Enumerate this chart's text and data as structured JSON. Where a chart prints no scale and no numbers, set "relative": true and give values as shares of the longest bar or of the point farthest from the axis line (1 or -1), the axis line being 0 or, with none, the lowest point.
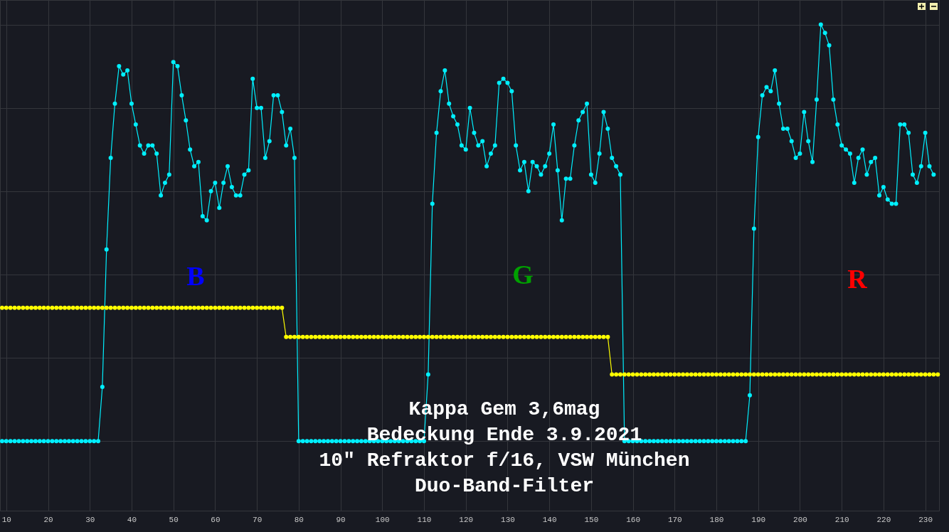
{
  "chart_data": {
    "type": "line",
    "x": [
      9,
      10,
      11,
      12,
      13,
      14,
      15,
      16,
      17,
      18,
      19,
      20,
      21,
      22,
      23,
      24,
      25,
      26,
      27,
      28,
      29,
      30,
      31,
      32,
      33,
      34,
      35,
      36,
      37,
      38,
      39,
      40,
      41,
      42,
      43,
      44,
      45,
      46,
      47,
      48,
      49,
      50,
      51,
      52,
      53,
      54,
      55,
      56,
      57,
      58,
      59,
      60,
      61,
      62,
      63,
      64,
      65,
      66,
      67,
      68,
      69,
      70,
      71,
      72,
      73,
      74,
      75,
      76,
      77,
      78,
      79,
      80,
      81,
      82,
      83,
      84,
      85,
      86,
      87,
      88,
      89,
      90,
      91,
      92,
      93,
      94,
      95,
      96,
      97,
      98,
      99,
      100,
      101,
      102,
      103,
      104,
      105,
      106,
      107,
      108,
      109,
      110,
      111,
      112,
      113,
      114,
      115,
      116,
      117,
      118,
      119,
      120,
      121,
      122,
      123,
      124,
      125,
      126,
      127,
      128,
      129,
      130,
      131,
      132,
      133,
      134,
      135,
      136,
      137,
      138,
      139,
      140,
      141,
      142,
      143,
      144,
      145,
      146,
      147,
      148,
      149,
      150,
      151,
      152,
      153,
      154,
      155,
      156,
      157,
      158,
      159,
      160,
      161,
      162,
      163,
      164,
      165,
      166,
      167,
      168,
      169,
      170,
      171,
      172,
      173,
      174,
      175,
      176,
      177,
      178,
      179,
      180,
      181,
      182,
      183,
      184,
      185,
      186,
      187,
      188,
      189,
      190,
      191,
      192,
      193,
      194,
      195,
      196,
      197,
      198,
      199,
      200,
      201,
      202,
      203,
      204,
      205,
      206,
      207,
      208,
      209,
      210,
      211,
      212,
      213,
      214,
      215,
      216,
      217,
      218,
      219,
      220,
      221,
      222,
      223,
      224,
      225,
      226,
      227,
      228,
      229,
      230,
      231,
      232,
      233
    ],
    "series": [
      {
        "color": "#00f0ff",
        "values": [
          0,
          0,
          0,
          0,
          0,
          0,
          0,
          0,
          0,
          0,
          0,
          0,
          0,
          0,
          0,
          0,
          0,
          0,
          0,
          0,
          0,
          0,
          0,
          0,
          0.13,
          0.46,
          0.68,
          0.81,
          0.9,
          0.88,
          0.89,
          0.81,
          0.76,
          0.71,
          0.69,
          0.71,
          0.71,
          0.69,
          0.59,
          0.62,
          0.64,
          0.91,
          0.9,
          0.83,
          0.77,
          0.7,
          0.66,
          0.67,
          0.54,
          0.53,
          0.6,
          0.62,
          0.56,
          0.62,
          0.66,
          0.61,
          0.59,
          0.59,
          0.64,
          0.65,
          0.87,
          0.8,
          0.8,
          0.68,
          0.72,
          0.83,
          0.83,
          0.79,
          0.71,
          0.75,
          0.68,
          0,
          0,
          0,
          0,
          0,
          0,
          0,
          0,
          0,
          0,
          0,
          0,
          0,
          0,
          0,
          0,
          0,
          0,
          0,
          0,
          0,
          0,
          0,
          0,
          0,
          0,
          0,
          0,
          0,
          0,
          0,
          0.16,
          0.57,
          0.74,
          0.84,
          0.89,
          0.81,
          0.78,
          0.76,
          0.71,
          0.7,
          0.8,
          0.74,
          0.71,
          0.72,
          0.66,
          0.69,
          0.71,
          0.86,
          0.87,
          0.86,
          0.84,
          0.71,
          0.65,
          0.67,
          0.6,
          0.67,
          0.66,
          0.64,
          0.66,
          0.69,
          0.76,
          0.65,
          0.53,
          0.63,
          0.63,
          0.71,
          0.77,
          0.79,
          0.81,
          0.64,
          0.62,
          0.69,
          0.79,
          0.75,
          0.68,
          0.66,
          0.64,
          0,
          0,
          0,
          0,
          0,
          0,
          0,
          0,
          0,
          0,
          0,
          0,
          0,
          0,
          0,
          0,
          0,
          0,
          0,
          0,
          0,
          0,
          0,
          0,
          0,
          0,
          0,
          0,
          0,
          0,
          0.11,
          0.51,
          0.73,
          0.83,
          0.85,
          0.84,
          0.89,
          0.81,
          0.75,
          0.75,
          0.72,
          0.68,
          0.69,
          0.79,
          0.72,
          0.67,
          0.82,
          1.0,
          0.98,
          0.95,
          0.82,
          0.76,
          0.71,
          0.7,
          0.69,
          0.62,
          0.68,
          0.7,
          0.64,
          0.67,
          0.68,
          0.59,
          0.61,
          0.58,
          0.57,
          0.57,
          0.76,
          0.76,
          0.74,
          0.64,
          0.62,
          0.66,
          0.74,
          0.66,
          0.64,
          null
        ]
      },
      {
        "color": "#ffff00",
        "values": [
          0.32,
          0.32,
          0.32,
          0.32,
          0.32,
          0.32,
          0.32,
          0.32,
          0.32,
          0.32,
          0.32,
          0.32,
          0.32,
          0.32,
          0.32,
          0.32,
          0.32,
          0.32,
          0.32,
          0.32,
          0.32,
          0.32,
          0.32,
          0.32,
          0.32,
          0.32,
          0.32,
          0.32,
          0.32,
          0.32,
          0.32,
          0.32,
          0.32,
          0.32,
          0.32,
          0.32,
          0.32,
          0.32,
          0.32,
          0.32,
          0.32,
          0.32,
          0.32,
          0.32,
          0.32,
          0.32,
          0.32,
          0.32,
          0.32,
          0.32,
          0.32,
          0.32,
          0.32,
          0.32,
          0.32,
          0.32,
          0.32,
          0.32,
          0.32,
          0.32,
          0.32,
          0.32,
          0.32,
          0.32,
          0.32,
          0.32,
          0.32,
          0.32,
          0.25,
          0.25,
          0.25,
          0.25,
          0.25,
          0.25,
          0.25,
          0.25,
          0.25,
          0.25,
          0.25,
          0.25,
          0.25,
          0.25,
          0.25,
          0.25,
          0.25,
          0.25,
          0.25,
          0.25,
          0.25,
          0.25,
          0.25,
          0.25,
          0.25,
          0.25,
          0.25,
          0.25,
          0.25,
          0.25,
          0.25,
          0.25,
          0.25,
          0.25,
          0.25,
          0.25,
          0.25,
          0.25,
          0.25,
          0.25,
          0.25,
          0.25,
          0.25,
          0.25,
          0.25,
          0.25,
          0.25,
          0.25,
          0.25,
          0.25,
          0.25,
          0.25,
          0.25,
          0.25,
          0.25,
          0.25,
          0.25,
          0.25,
          0.25,
          0.25,
          0.25,
          0.25,
          0.25,
          0.25,
          0.25,
          0.25,
          0.25,
          0.25,
          0.25,
          0.25,
          0.25,
          0.25,
          0.25,
          0.25,
          0.25,
          0.25,
          0.25,
          0.25,
          0.16,
          0.16,
          0.16,
          0.16,
          0.16,
          0.16,
          0.16,
          0.16,
          0.16,
          0.16,
          0.16,
          0.16,
          0.16,
          0.16,
          0.16,
          0.16,
          0.16,
          0.16,
          0.16,
          0.16,
          0.16,
          0.16,
          0.16,
          0.16,
          0.16,
          0.16,
          0.16,
          0.16,
          0.16,
          0.16,
          0.16,
          0.16,
          0.16,
          0.16,
          0.16,
          0.16,
          0.16,
          0.16,
          0.16,
          0.16,
          0.16,
          0.16,
          0.16,
          0.16,
          0.16,
          0.16,
          0.16,
          0.16,
          0.16,
          0.16,
          0.16,
          0.16,
          0.16,
          0.16,
          0.16,
          0.16,
          0.16,
          0.16,
          0.16,
          0.16,
          0.16,
          0.16,
          0.16,
          0.16,
          0.16,
          0.16,
          0.16,
          0.16,
          0.16,
          0.16,
          0.16,
          0.16,
          0.16,
          0.16,
          0.16,
          0.16,
          0.16,
          0.16,
          0.16
        ]
      }
    ],
    "relative": true,
    "xlim": [
      8.5,
      233.3
    ],
    "xticks": [
      10,
      20,
      30,
      40,
      50,
      60,
      70,
      80,
      90,
      100,
      110,
      120,
      130,
      140,
      150,
      160,
      170,
      180,
      190,
      200,
      210,
      220,
      230
    ],
    "grid": true,
    "marker": "circle",
    "line_style": "solid",
    "annotations": [
      "B",
      "G",
      "R",
      "Kappa Gem 3,6mag",
      "Bedeckung Ende 3.9.2021",
      "10\" Refraktor f/16, VSW München",
      "Duo-Band-Filter"
    ]
  }
}
